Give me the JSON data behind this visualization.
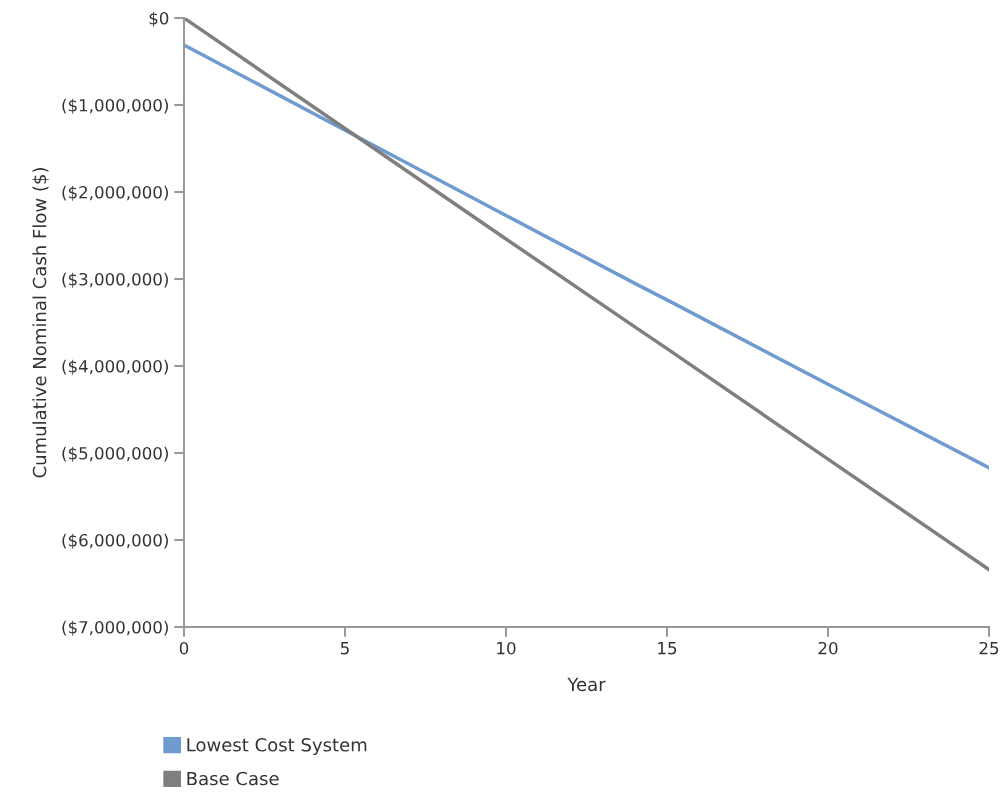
{
  "chart_data": {
    "type": "line",
    "xlabel": "Year",
    "ylabel": "Cumulative Nominal Cash Flow ($)",
    "xlim": [
      0,
      25
    ],
    "xticks": [
      0,
      5,
      10,
      15,
      20,
      25
    ],
    "ylim": [
      -7000000,
      0
    ],
    "yticks": [
      {
        "value": 0,
        "label": "$0"
      },
      {
        "value": -1000000,
        "label": "($1,000,000)"
      },
      {
        "value": -2000000,
        "label": "($2,000,000)"
      },
      {
        "value": -3000000,
        "label": "($3,000,000)"
      },
      {
        "value": -4000000,
        "label": "($4,000,000)"
      },
      {
        "value": -5000000,
        "label": "($5,000,000)"
      },
      {
        "value": -6000000,
        "label": "($6,000,000)"
      },
      {
        "value": -7000000,
        "label": "($7,000,000)"
      }
    ],
    "x": [
      0,
      5,
      10,
      14,
      15,
      20,
      25
    ],
    "series": [
      {
        "name": "Lowest Cost System",
        "color": "#6f9bcf",
        "values": [
          -310000,
          -1290000,
          -2270000,
          -3050000,
          -3240000,
          -4210000,
          -5170000
        ]
      },
      {
        "name": "Base Case",
        "color": "#7f7f7f",
        "values": [
          0,
          -1270000,
          -2540000,
          -3550000,
          -3800000,
          -5070000,
          -6340000
        ]
      }
    ],
    "grid": false,
    "legend": "bottom",
    "marker": "none",
    "line_style": "solid"
  }
}
